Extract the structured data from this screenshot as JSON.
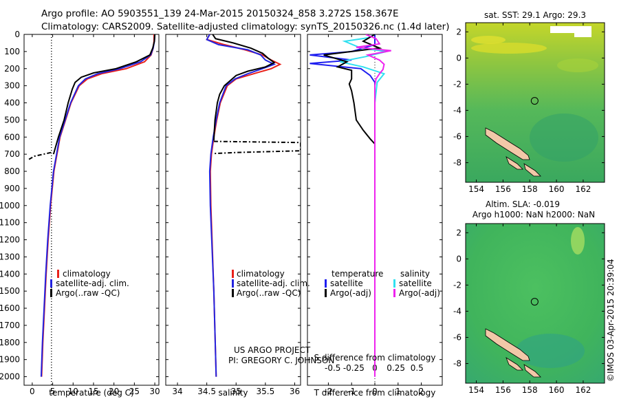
{
  "figure": {
    "title_line1": "Argo profile: AO 5903551_139 24-Mar-2015 20150324_858 3.272S 158.367E",
    "title_line2": "Climatology: CARS2009. Satellite-adjusted climatology: synTS_20150326.nc (1.4d later)",
    "footer_line1": "US ARGO PROJECT",
    "footer_line2": "PI: GREGORY C. JOHNSON",
    "timestamp": "©IMOS 03-Apr-2015 20:39:04"
  },
  "colors": {
    "climatology": "#e8201a",
    "satellite": "#2323e0",
    "argo": "#000000",
    "t_sat": "#1e1ef0",
    "s_sat": "#30e0f0",
    "s_argo": "#ee22ee"
  },
  "chart_data": [
    {
      "type": "line",
      "name": "temperature-profile",
      "xlabel": "temperature (deg C)",
      "ylabel": "",
      "xlim": [
        -2,
        31
      ],
      "ylim": [
        2050,
        0
      ],
      "xticks": [
        "0",
        "5",
        "10",
        "15",
        "20",
        "25",
        "30"
      ],
      "xtick_values": [
        0,
        5,
        10,
        15,
        20,
        25,
        30
      ],
      "yticks": [
        "0",
        "100",
        "200",
        "300",
        "400",
        "500",
        "600",
        "700",
        "800",
        "900",
        "1000",
        "1100",
        "1200",
        "1300",
        "1400",
        "1500",
        "1600",
        "1700",
        "1800",
        "1900",
        "2000"
      ],
      "ytick_values": [
        0,
        100,
        200,
        300,
        400,
        500,
        600,
        700,
        800,
        900,
        1000,
        1100,
        1200,
        1300,
        1400,
        1500,
        1600,
        1700,
        1800,
        1900,
        2000
      ],
      "legend": [
        "climatology",
        "satellite-adj. clim.",
        "Argo(..raw -QC)"
      ],
      "reference_line": {
        "x": 4.7,
        "style": "dotted"
      },
      "series": [
        {
          "name": "climatology",
          "color": "#e8201a",
          "depth": [
            0,
            40,
            80,
            120,
            160,
            200,
            230,
            260,
            300,
            400,
            600,
            800,
            1000,
            1200,
            1400,
            1600,
            1800,
            2000
          ],
          "values": [
            29.8,
            29.8,
            29.6,
            29.1,
            27.5,
            23,
            17,
            13.5,
            11.5,
            9.5,
            6.8,
            5.3,
            4.5,
            3.9,
            3.4,
            3.0,
            2.6,
            2.3
          ]
        },
        {
          "name": "satellite",
          "color": "#2323e0",
          "depth": [
            0,
            40,
            80,
            120,
            160,
            200,
            230,
            260,
            300,
            400,
            600,
            800,
            1000,
            1200,
            1400,
            1600,
            1800,
            2000
          ],
          "values": [
            30.0,
            29.9,
            29.6,
            29.0,
            26.5,
            21.5,
            16,
            13,
            11.3,
            9.4,
            6.7,
            5.2,
            4.4,
            3.8,
            3.3,
            2.9,
            2.5,
            2.2
          ]
        },
        {
          "name": "argo",
          "color": "#000000",
          "depth": [
            0,
            40,
            80,
            120,
            160,
            200,
            225,
            250,
            280,
            320,
            400,
            500,
            600,
            700
          ],
          "values": [
            30.0,
            29.9,
            29.5,
            28.8,
            25.5,
            20.5,
            15,
            12,
            10.5,
            9.8,
            8.8,
            7.8,
            6.4,
            5.2
          ]
        },
        {
          "name": "argo-flagged",
          "color": "#000000",
          "depth": [
            690,
            712,
            730
          ],
          "values": [
            4.6,
            0.5,
            -0.8
          ]
        }
      ]
    },
    {
      "type": "line",
      "name": "salinity-profile",
      "xlabel": "salinity",
      "xlim": [
        33.8,
        36.1
      ],
      "ylim": [
        2050,
        0
      ],
      "xticks": [
        "34",
        "34.5",
        "35",
        "35.5",
        "36"
      ],
      "xtick_values": [
        34,
        34.5,
        35,
        35.5,
        36
      ],
      "legend": [
        "climatology",
        "satellite-adj. clim.",
        "Argo(..raw -QC)"
      ],
      "series": [
        {
          "name": "climatology",
          "color": "#e8201a",
          "depth": [
            0,
            30,
            60,
            90,
            120,
            150,
            175,
            200,
            230,
            260,
            300,
            400,
            500,
            600,
            700,
            800,
            1000,
            1500,
            2000
          ],
          "values": [
            34.55,
            34.5,
            34.8,
            35.15,
            35.45,
            35.6,
            35.75,
            35.6,
            35.3,
            35.0,
            34.85,
            34.73,
            34.67,
            34.62,
            34.58,
            34.56,
            34.57,
            34.62,
            34.66
          ]
        },
        {
          "name": "satellite",
          "color": "#2323e0",
          "depth": [
            0,
            30,
            60,
            90,
            120,
            150,
            175,
            200,
            230,
            260,
            300,
            400,
            500,
            600,
            700,
            800,
            1000,
            1500,
            2000
          ],
          "values": [
            34.55,
            34.5,
            34.7,
            35.2,
            35.42,
            35.5,
            35.65,
            35.45,
            35.2,
            34.98,
            34.83,
            34.72,
            34.66,
            34.61,
            34.57,
            34.55,
            34.56,
            34.62,
            34.66
          ]
        },
        {
          "name": "argo",
          "color": "#000000",
          "depth": [
            0,
            25,
            50,
            80,
            110,
            140,
            165,
            190,
            215,
            240,
            270,
            300,
            350,
            400,
            450,
            500,
            560,
            620
          ],
          "values": [
            34.6,
            34.65,
            34.95,
            35.25,
            35.45,
            35.55,
            35.65,
            35.5,
            35.2,
            35.0,
            34.9,
            34.8,
            34.72,
            34.68,
            34.66,
            34.64,
            34.63,
            34.62
          ]
        },
        {
          "name": "argo-flagged",
          "color": "#000000",
          "depth": [
            625,
            632,
            660,
            680,
            690,
            696
          ],
          "values": [
            34.62,
            36.1,
            36.1,
            36.1,
            35.0,
            34.62
          ]
        }
      ]
    },
    {
      "type": "line",
      "name": "difference-profile",
      "xlabel": "T difference from climatology",
      "x2label": "S difference from climatology",
      "xlim": [
        -2.9,
        2.9
      ],
      "ylim": [
        2050,
        0
      ],
      "xticks": [
        "-2",
        "-1",
        "0",
        "1",
        "2"
      ],
      "xtick_values": [
        -2,
        -1,
        0,
        1,
        2
      ],
      "s_ticks": [
        "-0.5",
        "-0.25",
        "0",
        "0.25",
        "0.5"
      ],
      "s_tick_values": [
        -0.5,
        -0.25,
        0,
        0.25,
        0.5
      ],
      "legend_titles": [
        "temperature",
        "salinity"
      ],
      "legend": [
        "satellite",
        "Argo(-adj)",
        "satellite",
        "Argo(-adj)"
      ],
      "series": [
        {
          "name": "T satellite",
          "color": "#1e1ef0",
          "depth": [
            0,
            60,
            100,
            120,
            150,
            170,
            200,
            240,
            280,
            400,
            800,
            1200,
            1600,
            2000
          ],
          "values": [
            0,
            0,
            -1.0,
            -2.8,
            -1.0,
            -2.8,
            -0.6,
            -0.2,
            0,
            0,
            0,
            0,
            0,
            0
          ]
        },
        {
          "name": "S satellite",
          "color": "#30e0f0",
          "depth": [
            0,
            20,
            40,
            80,
            100,
            130,
            160,
            190,
            230,
            280,
            400,
            800,
            2000
          ],
          "values": [
            0,
            -0.3,
            -1.3,
            -0.6,
            0.5,
            -0.4,
            -1.5,
            -0.5,
            0.4,
            0.1,
            0,
            0,
            0
          ]
        },
        {
          "name": "T argo",
          "color": "#000000",
          "depth": [
            0,
            40,
            80,
            120,
            160,
            190,
            210,
            260,
            290,
            330,
            400,
            500,
            560,
            610,
            640
          ],
          "values": [
            0,
            -0.5,
            0.2,
            -2.2,
            -1.2,
            -1.6,
            -1.0,
            -1.0,
            -1.1,
            -1.0,
            -0.9,
            -0.8,
            -0.5,
            -0.2,
            0
          ]
        },
        {
          "name": "S argo",
          "color": "#ee22ee",
          "depth": [
            0,
            25,
            55,
            75,
            95,
            120,
            150,
            175,
            205,
            230,
            260,
            300,
            500,
            800,
            1200,
            1600,
            1800,
            2000
          ],
          "values": [
            -0.4,
            0.05,
            0.2,
            -0.8,
            0.7,
            -0.3,
            0.2,
            0.4,
            0.35,
            0.2,
            0.05,
            0,
            0,
            0,
            0,
            0,
            0,
            0
          ]
        }
      ]
    },
    {
      "type": "heatmap",
      "name": "sst-map",
      "title": "sat. SST: 29.1 Argo: 29.3",
      "xticks": [
        "154",
        "156",
        "158",
        "160",
        "162"
      ],
      "xtick_values": [
        154,
        156,
        158,
        160,
        162
      ],
      "yticks": [
        "2",
        "0",
        "-2",
        "-4",
        "-6",
        "-8"
      ],
      "ytick_values": [
        2,
        0,
        -2,
        -4,
        -6,
        -8
      ],
      "xlim": [
        153.2,
        163.6
      ],
      "ylim": [
        -9.5,
        2.7
      ],
      "marker": {
        "lon": 158.367,
        "lat": -3.272
      }
    },
    {
      "type": "heatmap",
      "name": "sla-map",
      "title": "Altim. SLA: -0.019",
      "subtitle": "Argo h1000: NaN h2000: NaN",
      "xticks": [
        "154",
        "156",
        "158",
        "160",
        "162"
      ],
      "xtick_values": [
        154,
        156,
        158,
        160,
        162
      ],
      "yticks": [
        "2",
        "0",
        "-2",
        "-4",
        "-6",
        "-8"
      ],
      "ytick_values": [
        2,
        0,
        -2,
        -4,
        -6,
        -8
      ],
      "xlim": [
        153.2,
        163.6
      ],
      "ylim": [
        -9.5,
        2.7
      ],
      "marker": {
        "lon": 158.367,
        "lat": -3.272
      }
    }
  ]
}
